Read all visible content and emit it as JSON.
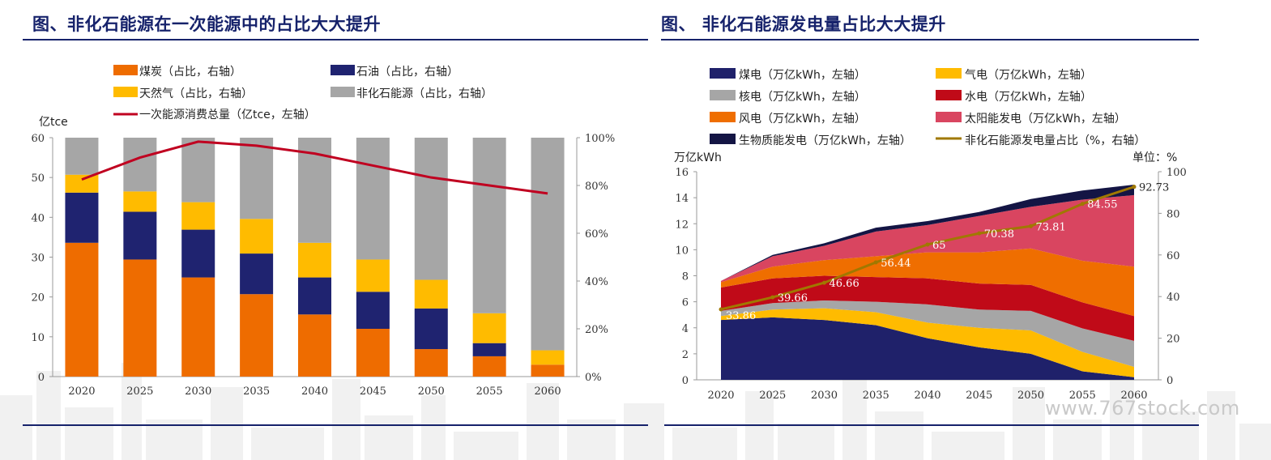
{
  "left": {
    "title": "图、非化石能源在一次能源中的占比大大提升",
    "colors": {
      "coal": "#ee6c00",
      "oil": "#1f2370",
      "gas": "#ffbb00",
      "nonfossil": "#a6a6a6",
      "total": "#c00020"
    },
    "chart_data": {
      "type": "bar",
      "stacked": true,
      "categories": [
        "2020",
        "2025",
        "2030",
        "2035",
        "2040",
        "2045",
        "2050",
        "2055",
        "2060"
      ],
      "series": [
        {
          "name": "煤炭（占比，右轴）",
          "key": "coal",
          "axis": "right",
          "values": [
            56,
            49,
            41.5,
            34.5,
            26,
            20,
            11.5,
            8.5,
            5
          ]
        },
        {
          "name": "石油（占比，右轴）",
          "key": "oil",
          "axis": "right",
          "values": [
            21,
            20,
            20,
            17,
            15.5,
            15.5,
            17,
            5.5,
            0
          ]
        },
        {
          "name": "天然气（占比，右轴）",
          "key": "gas",
          "axis": "right",
          "values": [
            7.5,
            8.5,
            11.5,
            14.5,
            14.5,
            13.5,
            12,
            12.5,
            6
          ]
        },
        {
          "name": "非化石能源（占比，右轴）",
          "key": "nonfossil",
          "axis": "right",
          "values": [
            15.5,
            22.5,
            27,
            34,
            44,
            51,
            59.5,
            73.5,
            89
          ]
        }
      ],
      "line": {
        "name": "一次能源消费总量（亿tce，左轴）",
        "key": "total",
        "axis": "left",
        "values": [
          49.5,
          55,
          59,
          58,
          56,
          53,
          50,
          48,
          46
        ]
      },
      "left_axis": {
        "label": "亿tce",
        "min": 0,
        "max": 60,
        "ticks": [
          "0",
          "10",
          "20",
          "30",
          "40",
          "50",
          "60"
        ]
      },
      "right_axis": {
        "min": 0,
        "max": 100,
        "ticks": [
          "0%",
          "20%",
          "40%",
          "60%",
          "80%",
          "100%"
        ]
      },
      "grid": false,
      "legend_position": "top"
    }
  },
  "right": {
    "title": "图、 非化石能源发电量占比大大提升",
    "colors": {
      "coal": "#1f216a",
      "gas": "#ffbb00",
      "nuclear": "#a6a6a6",
      "hydro": "#c00a18",
      "wind": "#ef6e00",
      "solar": "#d94560",
      "bio": "#141544",
      "share": "#a07800"
    },
    "chart_data": {
      "type": "area",
      "stacked": true,
      "categories": [
        "2020",
        "2025",
        "2030",
        "2035",
        "2040",
        "2045",
        "2050",
        "2055",
        "2060"
      ],
      "series": [
        {
          "name": "煤电（万亿kWh，左轴）",
          "key": "coal",
          "axis": "left",
          "values": [
            4.6,
            4.8,
            4.6,
            4.2,
            3.2,
            2.5,
            2.0,
            0.65,
            0.2
          ]
        },
        {
          "name": "气电（万亿kWh，左轴）",
          "key": "gas",
          "axis": "left",
          "values": [
            0.3,
            0.6,
            0.9,
            1.0,
            1.2,
            1.5,
            1.8,
            1.5,
            0.8
          ]
        },
        {
          "name": "核电（万亿kWh，左轴）",
          "key": "nuclear",
          "axis": "left",
          "values": [
            0.4,
            0.5,
            0.6,
            0.8,
            1.4,
            1.4,
            1.5,
            1.8,
            2.0
          ]
        },
        {
          "name": "水电（万亿kWh，左轴）",
          "key": "hydro",
          "axis": "left",
          "values": [
            1.8,
            1.9,
            1.9,
            1.9,
            2.0,
            2.0,
            2.0,
            2.0,
            1.9
          ]
        },
        {
          "name": "风电（万亿kWh，左轴）",
          "key": "wind",
          "axis": "left",
          "values": [
            0.4,
            0.9,
            1.2,
            1.6,
            2.0,
            2.4,
            2.8,
            3.2,
            3.8
          ]
        },
        {
          "name": "太阳能发电（万亿kWh，左轴）",
          "key": "solar",
          "axis": "left",
          "values": [
            0.1,
            0.8,
            1.1,
            1.9,
            2.1,
            2.8,
            3.2,
            4.7,
            5.5
          ]
        },
        {
          "name": "生物质能发电（万亿kWh，左轴）",
          "key": "bio",
          "axis": "left",
          "values": [
            0.0,
            0.1,
            0.2,
            0.3,
            0.3,
            0.3,
            0.6,
            0.7,
            0.8
          ]
        }
      ],
      "line": {
        "name": "非化石能源发电量占比（%，右轴）",
        "key": "share",
        "axis": "right",
        "values": [
          33.86,
          39.66,
          46.66,
          56.44,
          65,
          70.38,
          73.81,
          84.55,
          92.73
        ]
      },
      "line_labels": [
        "33.86",
        "39.66",
        "46.66",
        "56.44",
        "65",
        "70.38",
        "73.81",
        "84.55",
        "92.73"
      ],
      "left_axis": {
        "label": "万亿kWh",
        "min": 0,
        "max": 16,
        "ticks": [
          "0",
          "2",
          "4",
          "6",
          "8",
          "10",
          "12",
          "14",
          "16"
        ]
      },
      "right_axis": {
        "label": "单位：%",
        "min": 0,
        "max": 100,
        "ticks": [
          "0",
          "20",
          "40",
          "60",
          "80",
          "100"
        ]
      },
      "grid": false,
      "legend_position": "top"
    }
  },
  "watermark": "www.767stock.com"
}
